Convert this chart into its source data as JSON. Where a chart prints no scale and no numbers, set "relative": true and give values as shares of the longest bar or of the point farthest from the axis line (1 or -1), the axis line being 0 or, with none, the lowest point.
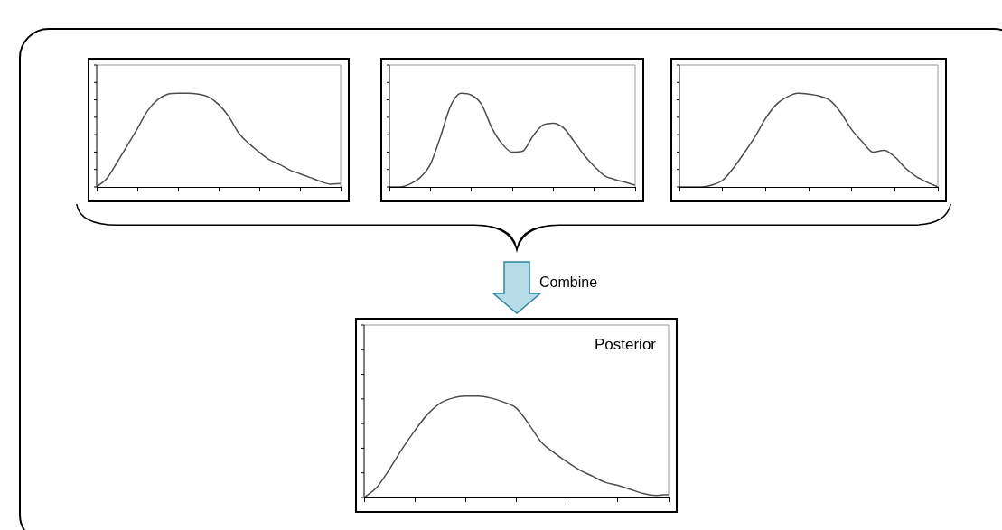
{
  "chart_data": [
    {
      "type": "line",
      "relative": true,
      "grid": false,
      "legend": false,
      "marker": "none",
      "color": "#4d4d4d",
      "categories": [
        null,
        null,
        null,
        null,
        null,
        null,
        null,
        null,
        null,
        null,
        null,
        null,
        null,
        null,
        null,
        null,
        null,
        null,
        null,
        null,
        null,
        null,
        null,
        null,
        null
      ],
      "values": [
        0,
        0.09,
        0.26,
        0.44,
        0.62,
        0.81,
        0.93,
        0.99,
        1,
        1,
        0.99,
        0.96,
        0.88,
        0.75,
        0.57,
        0.46,
        0.37,
        0.29,
        0.24,
        0.18,
        0.14,
        0.1,
        0.06,
        0.03,
        0.035
      ]
    },
    {
      "type": "line",
      "relative": true,
      "grid": false,
      "legend": false,
      "marker": "none",
      "color": "#4d4d4d",
      "categories": [
        null,
        null,
        null,
        null,
        null,
        null,
        null,
        null,
        null,
        null,
        null,
        null,
        null,
        null,
        null,
        null,
        null,
        null,
        null,
        null,
        null,
        null,
        null,
        null,
        null
      ],
      "values": [
        0,
        0,
        0.03,
        0.1,
        0.24,
        0.54,
        0.87,
        1,
        0.98,
        0.88,
        0.63,
        0.46,
        0.37,
        0.38,
        0.54,
        0.66,
        0.68,
        0.63,
        0.49,
        0.34,
        0.22,
        0.12,
        0.08,
        0.05,
        0.02
      ]
    },
    {
      "type": "line",
      "relative": true,
      "grid": false,
      "legend": false,
      "marker": "none",
      "color": "#4d4d4d",
      "categories": [
        null,
        null,
        null,
        null,
        null,
        null,
        null,
        null,
        null,
        null,
        null,
        null,
        null,
        null,
        null,
        null,
        null,
        null,
        null,
        null,
        null,
        null,
        null,
        null,
        null
      ],
      "values": [
        0,
        0,
        0,
        0.02,
        0.07,
        0.2,
        0.36,
        0.53,
        0.73,
        0.88,
        0.96,
        1,
        0.99,
        0.97,
        0.92,
        0.79,
        0.61,
        0.48,
        0.37,
        0.39,
        0.32,
        0.2,
        0.11,
        0.05,
        0
      ]
    },
    {
      "type": "line",
      "relative": true,
      "grid": false,
      "legend": false,
      "marker": "none",
      "color": "#4d4d4d",
      "title": "Posterior",
      "annotations": [
        "Combine"
      ],
      "categories": [
        null,
        null,
        null,
        null,
        null,
        null,
        null,
        null,
        null,
        null,
        null,
        null,
        null,
        null,
        null,
        null,
        null,
        null,
        null,
        null,
        null,
        null,
        null,
        null,
        null
      ],
      "values": [
        0,
        0.1,
        0.28,
        0.48,
        0.66,
        0.82,
        0.93,
        0.98,
        1,
        1,
        0.98,
        0.94,
        0.88,
        0.72,
        0.54,
        0.44,
        0.35,
        0.27,
        0.21,
        0.15,
        0.12,
        0.08,
        0.04,
        0.02,
        0.03
      ]
    }
  ]
}
